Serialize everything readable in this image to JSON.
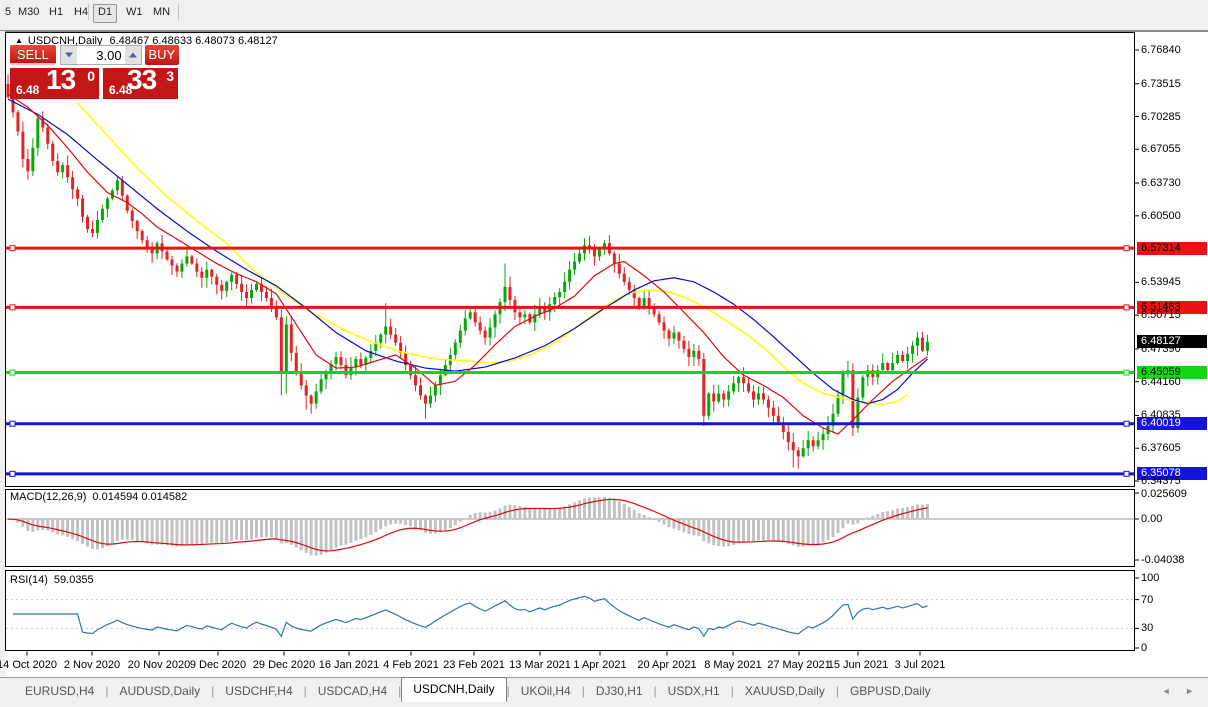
{
  "toolbar": {
    "timeframes": [
      {
        "label": "5",
        "active": false
      },
      {
        "label": "M30",
        "active": false
      },
      {
        "label": "H1",
        "active": false
      },
      {
        "label": "H4",
        "active": false
      },
      {
        "label": "D1",
        "active": true
      },
      {
        "label": "W1",
        "active": false
      },
      {
        "label": "MN",
        "active": false
      }
    ]
  },
  "chart": {
    "collapse_icon": "▲",
    "symbol_line": "USDCNH,Daily",
    "ohlc_line": "6.48467 6.48633 6.48073 6.48127",
    "trade_panel": {
      "sell_label": "SELL",
      "buy_label": "BUY",
      "volume": "3.00",
      "sell_price_prefix": "6.48",
      "sell_price_big": "13",
      "sell_price_sup": "0",
      "buy_price_prefix": "6.48",
      "buy_price_big": "33",
      "buy_price_sup": "3"
    }
  },
  "chart_data": {
    "type": "candlestick",
    "symbol": "USDCNH",
    "timeframe": "Daily",
    "title": "USDCNH,Daily",
    "visible_ohlc": {
      "open": 6.48467,
      "high": 6.48633,
      "low": 6.48073,
      "close": 6.48127
    },
    "price_axis": {
      "labels": [
        "6.76840",
        "6.73515",
        "6.70285",
        "6.67055",
        "6.63730",
        "6.60500",
        "6.53945",
        "6.50715",
        "6.47390",
        "6.44160",
        "6.40835",
        "6.37605",
        "6.34375"
      ],
      "prices": [
        6.7684,
        6.73515,
        6.70285,
        6.67055,
        6.6373,
        6.605,
        6.53945,
        6.50715,
        6.4739,
        6.4416,
        6.40835,
        6.37605,
        6.34375
      ],
      "range": [
        6.339,
        6.785
      ]
    },
    "levels": [
      {
        "price": 6.57314,
        "label": "6.57314",
        "color": "#ee1111",
        "text_color": "#000000"
      },
      {
        "price": 6.51483,
        "label": "6.51483",
        "color": "#ee1111",
        "text_color": "#000000"
      },
      {
        "price": 6.45059,
        "label": "6.45059",
        "color": "#12d812",
        "text_color": "#000000"
      },
      {
        "price": 6.40019,
        "label": "6.40019",
        "color": "#1414dd",
        "text_color": "#ffffff"
      },
      {
        "price": 6.35078,
        "label": "6.35078",
        "color": "#1414dd",
        "text_color": "#ffffff"
      }
    ],
    "current_price": {
      "label": "6.48127",
      "price": 6.48127,
      "bg": "#000000",
      "text_color": "#ffffff"
    },
    "x_axis": {
      "labels": [
        "14 Oct 2020",
        "2 Nov 2020",
        "20 Nov 2020",
        "9 Dec 2020",
        "29 Dec 2020",
        "16 Jan 2021",
        "4 Feb 2021",
        "23 Feb 2021",
        "13 Mar 2021",
        "1 Apr 2021",
        "20 Apr 2021",
        "8 May 2021",
        "27 May 2021",
        "15 Jun 2021",
        "3 Jul 2021"
      ],
      "x_positions": [
        27,
        92,
        159,
        218,
        284,
        349,
        411,
        474,
        540,
        600,
        667,
        733,
        799,
        858,
        920
      ]
    },
    "candles": {
      "first_open": 6.735,
      "up_color": "#09a609",
      "down_color": "#e32424",
      "closes": [
        6.722,
        6.707,
        6.688,
        6.661,
        6.649,
        6.672,
        6.701,
        6.692,
        6.676,
        6.659,
        6.648,
        6.655,
        6.643,
        6.631,
        6.622,
        6.604,
        6.592,
        6.588,
        6.601,
        6.612,
        6.622,
        6.63,
        6.64,
        6.625,
        6.61,
        6.6,
        6.59,
        6.581,
        6.574,
        6.568,
        6.578,
        6.57,
        6.562,
        6.556,
        6.55,
        6.558,
        6.565,
        6.558,
        6.55,
        6.544,
        6.552,
        6.545,
        6.537,
        6.531,
        6.54,
        6.547,
        6.538,
        6.53,
        6.524,
        6.532,
        6.538,
        6.53,
        6.524,
        6.516,
        6.505,
        6.45,
        6.498,
        6.47,
        6.45,
        6.438,
        6.428,
        6.42,
        6.432,
        6.444,
        6.452,
        6.459,
        6.466,
        6.458,
        6.448,
        6.456,
        6.464,
        6.458,
        6.465,
        6.472,
        6.48,
        6.488,
        6.496,
        6.488,
        6.48,
        6.47,
        6.458,
        6.448,
        6.438,
        6.428,
        6.42,
        6.428,
        6.438,
        6.448,
        6.458,
        6.468,
        6.48,
        6.492,
        6.504,
        6.51,
        6.5,
        6.492,
        6.485,
        6.495,
        6.508,
        6.52,
        6.535,
        6.522,
        6.51,
        6.505,
        6.508,
        6.5,
        6.508,
        6.516,
        6.51,
        6.518,
        6.525,
        6.53,
        6.54,
        6.552,
        6.56,
        6.568,
        6.576,
        6.572,
        6.565,
        6.572,
        6.578,
        6.568,
        6.558,
        6.548,
        6.54,
        6.532,
        6.524,
        6.516,
        6.524,
        6.516,
        6.508,
        6.5,
        6.492,
        6.484,
        6.49,
        6.482,
        6.474,
        6.466,
        6.472,
        6.464,
        6.408,
        6.43,
        6.422,
        6.43,
        6.424,
        6.432,
        6.44,
        6.446,
        6.44,
        6.432,
        6.424,
        6.43,
        6.424,
        6.416,
        6.408,
        6.4,
        6.392,
        6.382,
        6.374,
        6.368,
        6.376,
        6.384,
        6.378,
        6.384,
        6.39,
        6.398,
        6.41,
        6.428,
        6.45,
        6.453,
        6.396,
        6.426,
        6.446,
        6.453,
        6.446,
        6.453,
        6.46,
        6.453,
        6.46,
        6.468,
        6.462,
        6.469,
        6.477,
        6.485,
        6.472,
        6.481
      ],
      "wick_overrides": {
        "17": {
          "l": 6.584
        },
        "55": {
          "l": 6.428
        },
        "56": {
          "h": 6.506,
          "l": 6.43
        },
        "60": {
          "l": 6.414
        },
        "61": {
          "l": 6.41
        },
        "76": {
          "h": 6.519
        },
        "84": {
          "l": 6.405
        },
        "100": {
          "h": 6.558
        },
        "101": {
          "h": 6.545
        },
        "117": {
          "h": 6.585
        },
        "120": {
          "h": 6.581
        },
        "140": {
          "h": 6.47,
          "l": 6.398
        },
        "158": {
          "l": 6.357
        },
        "159": {
          "l": 6.356
        },
        "169": {
          "h": 6.462
        },
        "170": {
          "l": 6.388
        }
      }
    },
    "moving_averages": [
      {
        "name": "slow-ma",
        "color": "#ffff00",
        "points": [
          [
            14,
            6.716
          ],
          [
            20,
            6.684
          ],
          [
            26,
            6.652
          ],
          [
            32,
            6.624
          ],
          [
            38,
            6.6
          ],
          [
            44,
            6.578
          ],
          [
            49,
            6.553
          ],
          [
            55,
            6.53
          ],
          [
            61,
            6.51
          ],
          [
            67,
            6.494
          ],
          [
            73,
            6.481
          ],
          [
            79,
            6.471
          ],
          [
            86,
            6.464
          ],
          [
            93,
            6.462
          ],
          [
            97,
            6.46
          ],
          [
            101,
            6.462
          ],
          [
            105,
            6.468
          ],
          [
            109,
            6.477
          ],
          [
            113,
            6.49
          ],
          [
            117,
            6.505
          ],
          [
            121,
            6.519
          ],
          [
            125,
            6.529
          ],
          [
            129,
            6.532
          ],
          [
            133,
            6.53
          ],
          [
            137,
            6.523
          ],
          [
            141,
            6.513
          ],
          [
            145,
            6.5
          ],
          [
            149,
            6.487
          ],
          [
            153,
            6.471
          ],
          [
            157,
            6.452
          ],
          [
            160,
            6.44
          ],
          [
            164,
            6.43
          ],
          [
            169,
            6.424
          ],
          [
            173,
            6.421
          ],
          [
            176,
            6.419
          ],
          [
            179,
            6.422
          ],
          [
            181,
            6.429
          ]
        ]
      },
      {
        "name": "mid-ma",
        "color": "#0a0ad0",
        "points": [
          [
            0,
            6.72
          ],
          [
            6,
            6.705
          ],
          [
            12,
            6.685
          ],
          [
            18,
            6.66
          ],
          [
            24,
            6.636
          ],
          [
            30,
            6.612
          ],
          [
            36,
            6.59
          ],
          [
            42,
            6.57
          ],
          [
            48,
            6.552
          ],
          [
            54,
            6.536
          ],
          [
            60,
            6.514
          ],
          [
            66,
            6.49
          ],
          [
            72,
            6.472
          ],
          [
            78,
            6.462
          ],
          [
            84,
            6.455
          ],
          [
            90,
            6.452
          ],
          [
            96,
            6.456
          ],
          [
            102,
            6.465
          ],
          [
            108,
            6.477
          ],
          [
            114,
            6.494
          ],
          [
            120,
            6.514
          ],
          [
            126,
            6.532
          ],
          [
            130,
            6.541
          ],
          [
            134,
            6.544
          ],
          [
            138,
            6.54
          ],
          [
            142,
            6.53
          ],
          [
            146,
            6.518
          ],
          [
            150,
            6.503
          ],
          [
            154,
            6.486
          ],
          [
            158,
            6.468
          ],
          [
            162,
            6.45
          ],
          [
            166,
            6.434
          ],
          [
            170,
            6.424
          ],
          [
            173,
            6.42
          ],
          [
            176,
            6.424
          ],
          [
            179,
            6.434
          ],
          [
            182,
            6.45
          ],
          [
            185,
            6.464
          ]
        ]
      },
      {
        "name": "fast-ma",
        "color": "#dd0a0a",
        "points": [
          [
            0,
            6.725
          ],
          [
            4,
            6.712
          ],
          [
            8,
            6.694
          ],
          [
            12,
            6.672
          ],
          [
            16,
            6.648
          ],
          [
            20,
            6.628
          ],
          [
            24,
            6.618
          ],
          [
            27,
            6.607
          ],
          [
            30,
            6.594
          ],
          [
            34,
            6.582
          ],
          [
            38,
            6.57
          ],
          [
            42,
            6.558
          ],
          [
            46,
            6.548
          ],
          [
            50,
            6.54
          ],
          [
            54,
            6.528
          ],
          [
            58,
            6.498
          ],
          [
            62,
            6.468
          ],
          [
            66,
            6.455
          ],
          [
            70,
            6.456
          ],
          [
            74,
            6.462
          ],
          [
            78,
            6.468
          ],
          [
            82,
            6.455
          ],
          [
            86,
            6.438
          ],
          [
            90,
            6.442
          ],
          [
            94,
            6.458
          ],
          [
            98,
            6.478
          ],
          [
            102,
            6.496
          ],
          [
            106,
            6.506
          ],
          [
            110,
            6.514
          ],
          [
            114,
            6.526
          ],
          [
            118,
            6.546
          ],
          [
            122,
            6.558
          ],
          [
            124,
            6.56
          ],
          [
            128,
            6.546
          ],
          [
            132,
            6.53
          ],
          [
            136,
            6.51
          ],
          [
            140,
            6.49
          ],
          [
            144,
            6.466
          ],
          [
            148,
            6.448
          ],
          [
            152,
            6.438
          ],
          [
            156,
            6.426
          ],
          [
            160,
            6.408
          ],
          [
            164,
            6.396
          ],
          [
            167,
            6.39
          ],
          [
            170,
            6.404
          ],
          [
            174,
            6.424
          ],
          [
            178,
            6.442
          ],
          [
            182,
            6.456
          ],
          [
            185,
            6.466
          ]
        ]
      }
    ],
    "macd": {
      "name": "MACD(12,26,9)",
      "values_label": "0.014594 0.014582",
      "params": [
        12,
        26,
        9
      ],
      "axis_labels": [
        {
          "value": 0.025609,
          "label": "0.025609"
        },
        {
          "value": 0,
          "label": "0.00"
        },
        {
          "value": -0.04038,
          "label": "-0.04038"
        }
      ],
      "histogram_color": "#c2c2c2",
      "signal_color": "#dd0a0a"
    },
    "rsi": {
      "name": "RSI(14)",
      "value_label": "59.0355",
      "period": 14,
      "axis_labels": [
        {
          "value": 100,
          "label": "100"
        },
        {
          "value": 70,
          "label": "70"
        },
        {
          "value": 30,
          "label": "30"
        },
        {
          "value": 0,
          "label": "0"
        }
      ],
      "guide_levels": [
        70,
        30
      ],
      "line_color": "#2f74b5"
    }
  },
  "tabs": {
    "items": [
      {
        "label": "EURUSD,H4",
        "active": false
      },
      {
        "label": "AUDUSD,Daily",
        "active": false
      },
      {
        "label": "USDCHF,H4",
        "active": false
      },
      {
        "label": "USDCAD,H4",
        "active": false
      },
      {
        "label": "USDCNH,Daily",
        "active": true
      },
      {
        "label": "UKOil,H4",
        "active": false
      },
      {
        "label": "DJ30,H1",
        "active": false
      },
      {
        "label": "USDX,H1",
        "active": false
      },
      {
        "label": "XAUUSD,Daily",
        "active": false
      },
      {
        "label": "GBPUSD,Daily",
        "active": false
      }
    ],
    "nav_left": "◄",
    "nav_right": "►"
  }
}
